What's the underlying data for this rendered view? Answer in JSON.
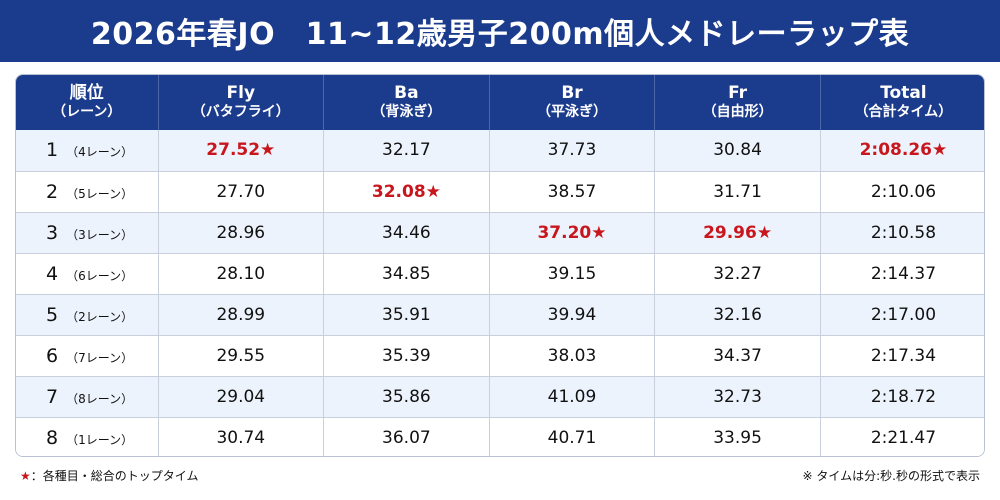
{
  "title": "2026年春JO　11~12歳男子200m個人メドレーラップ表",
  "columns": [
    {
      "main": "順位",
      "sub": "（レーン）"
    },
    {
      "main": "Fly",
      "sub": "（バタフライ）"
    },
    {
      "main": "Ba",
      "sub": "（背泳ぎ）"
    },
    {
      "main": "Br",
      "sub": "（平泳ぎ）"
    },
    {
      "main": "Fr",
      "sub": "（自由形）"
    },
    {
      "main": "Total",
      "sub": "（合計タイム）"
    }
  ],
  "rows": [
    {
      "rank": "1",
      "lane": "（4レーン）",
      "cells": [
        {
          "text": "27.52★",
          "best": true
        },
        {
          "text": "32.17",
          "best": false
        },
        {
          "text": "37.73",
          "best": false
        },
        {
          "text": "30.84",
          "best": false
        },
        {
          "text": "2:08.26★",
          "best": true
        }
      ]
    },
    {
      "rank": "2",
      "lane": "（5レーン）",
      "cells": [
        {
          "text": "27.70",
          "best": false
        },
        {
          "text": "32.08★",
          "best": true
        },
        {
          "text": "38.57",
          "best": false
        },
        {
          "text": "31.71",
          "best": false
        },
        {
          "text": "2:10.06",
          "best": false
        }
      ]
    },
    {
      "rank": "3",
      "lane": "（3レーン）",
      "cells": [
        {
          "text": "28.96",
          "best": false
        },
        {
          "text": "34.46",
          "best": false
        },
        {
          "text": "37.20★",
          "best": true
        },
        {
          "text": "29.96★",
          "best": true
        },
        {
          "text": "2:10.58",
          "best": false
        }
      ]
    },
    {
      "rank": "4",
      "lane": "（6レーン）",
      "cells": [
        {
          "text": "28.10",
          "best": false
        },
        {
          "text": "34.85",
          "best": false
        },
        {
          "text": "39.15",
          "best": false
        },
        {
          "text": "32.27",
          "best": false
        },
        {
          "text": "2:14.37",
          "best": false
        }
      ]
    },
    {
      "rank": "5",
      "lane": "（2レーン）",
      "cells": [
        {
          "text": "28.99",
          "best": false
        },
        {
          "text": "35.91",
          "best": false
        },
        {
          "text": "39.94",
          "best": false
        },
        {
          "text": "32.16",
          "best": false
        },
        {
          "text": "2:17.00",
          "best": false
        }
      ]
    },
    {
      "rank": "6",
      "lane": "（7レーン）",
      "cells": [
        {
          "text": "29.55",
          "best": false
        },
        {
          "text": "35.39",
          "best": false
        },
        {
          "text": "38.03",
          "best": false
        },
        {
          "text": "34.37",
          "best": false
        },
        {
          "text": "2:17.34",
          "best": false
        }
      ]
    },
    {
      "rank": "7",
      "lane": "（8レーン）",
      "cells": [
        {
          "text": "29.04",
          "best": false
        },
        {
          "text": "35.86",
          "best": false
        },
        {
          "text": "41.09",
          "best": false
        },
        {
          "text": "32.73",
          "best": false
        },
        {
          "text": "2:18.72",
          "best": false
        }
      ]
    },
    {
      "rank": "8",
      "lane": "（1レーン）",
      "cells": [
        {
          "text": "30.74",
          "best": false
        },
        {
          "text": "36.07",
          "best": false
        },
        {
          "text": "40.71",
          "best": false
        },
        {
          "text": "33.95",
          "best": false
        },
        {
          "text": "2:21.47",
          "best": false
        }
      ]
    }
  ],
  "footer": {
    "legend_star": "★",
    "legend_text": "：各種目・総合のトップタイム",
    "note": "※ タイムは分:秒.秒の形式で表示"
  },
  "colors": {
    "header_bg": "#1b3b8c",
    "best_time": "#c8161d",
    "stripe": "#edf3fc"
  }
}
